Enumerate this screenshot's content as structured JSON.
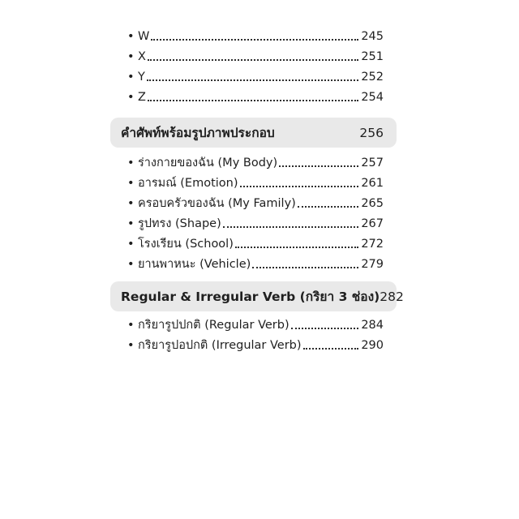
{
  "page": {
    "background": "#ffffff",
    "text_color": "#1f1f1f",
    "header_bg": "#e9e9e9"
  },
  "glyphs": {
    "bullet": "•"
  },
  "toc": {
    "sections": [
      {
        "items": [
          {
            "label": "W",
            "page": "245"
          },
          {
            "label": "X",
            "page": "251"
          },
          {
            "label": "Y",
            "page": "252"
          },
          {
            "label": "Z",
            "page": "254"
          }
        ]
      },
      {
        "header": {
          "title": "คำศัพท์พร้อมรูปภาพประกอบ",
          "page": "256"
        },
        "items": [
          {
            "label": "ร่างกายของฉัน (My Body)",
            "page": "257"
          },
          {
            "label": "อารมณ์ (Emotion)",
            "page": "261"
          },
          {
            "label": "ครอบครัวของฉัน (My Family)",
            "page": "265"
          },
          {
            "label": "รูปทรง (Shape)",
            "page": "267"
          },
          {
            "label": "โรงเรียน (School)",
            "page": "272"
          },
          {
            "label": "ยานพาหนะ (Vehicle)",
            "page": "279"
          }
        ]
      },
      {
        "header": {
          "title": "Regular & Irregular Verb (กริยา 3 ช่อง)",
          "page": "282"
        },
        "items": [
          {
            "label": "กริยารูปปกติ (Regular Verb)",
            "page": "284"
          },
          {
            "label": "กริยารูปอปกติ (Irregular Verb)",
            "page": "290"
          }
        ]
      }
    ]
  }
}
